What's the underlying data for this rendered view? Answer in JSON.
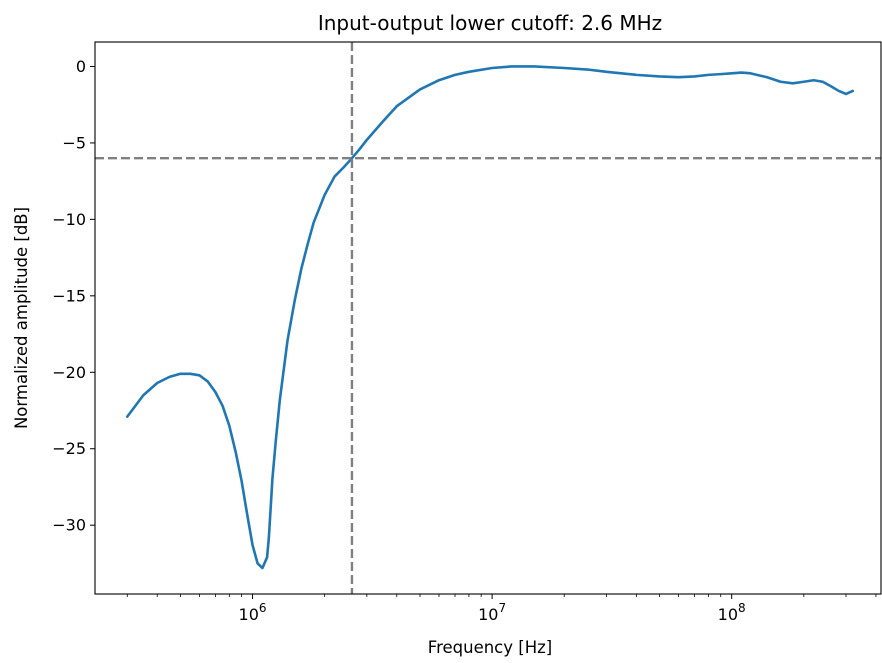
{
  "chart_data": {
    "type": "line",
    "title": "Input-output lower cutoff: 2.6 MHz",
    "xlabel": "Frequency [Hz]",
    "ylabel": "Normalized amplitude [dB]",
    "xscale": "log",
    "xlim": [
      220000,
      420000000
    ],
    "ylim": [
      -34.5,
      1.6
    ],
    "grid": false,
    "x_ticks": [
      {
        "value": 1000000,
        "base": "10",
        "exp": "6"
      },
      {
        "value": 10000000,
        "base": "10",
        "exp": "7"
      },
      {
        "value": 100000000,
        "base": "10",
        "exp": "8"
      }
    ],
    "y_ticks": [
      {
        "value": 0,
        "label": "0"
      },
      {
        "value": -5,
        "label": "−5"
      },
      {
        "value": -10,
        "label": "−10"
      },
      {
        "value": -15,
        "label": "−15"
      },
      {
        "value": -20,
        "label": "−20"
      },
      {
        "value": -25,
        "label": "−25"
      },
      {
        "value": -30,
        "label": "−30"
      }
    ],
    "reference_lines": {
      "cutoff_frequency_hz": 2600000,
      "threshold_db": -6,
      "color": "#808080",
      "style": "dashed"
    },
    "series": [
      {
        "color": "#1f77b4",
        "x": [
          300000,
          350000,
          400000,
          450000,
          500000,
          550000,
          600000,
          650000,
          700000,
          750000,
          800000,
          850000,
          900000,
          950000,
          1000000,
          1050000,
          1100000,
          1150000,
          1170000,
          1190000,
          1210000,
          1250000,
          1300000,
          1400000,
          1500000,
          1600000,
          1700000,
          1800000,
          2000000,
          2200000,
          2400000,
          2600000,
          2800000,
          3000000,
          3500000,
          4000000,
          5000000,
          6000000,
          7000000,
          8000000,
          10000000,
          12000000,
          15000000,
          20000000,
          25000000,
          30000000,
          40000000,
          50000000,
          60000000,
          70000000,
          80000000,
          90000000,
          100000000,
          110000000,
          120000000,
          140000000,
          160000000,
          180000000,
          200000000,
          220000000,
          240000000,
          260000000,
          280000000,
          300000000,
          320000000
        ],
        "y": [
          -22.9,
          -21.5,
          -20.7,
          -20.3,
          -20.1,
          -20.1,
          -20.2,
          -20.6,
          -21.3,
          -22.2,
          -23.5,
          -25.2,
          -27.1,
          -29.3,
          -31.3,
          -32.5,
          -32.8,
          -32.1,
          -30.8,
          -28.9,
          -27.0,
          -24.5,
          -21.8,
          -17.9,
          -15.3,
          -13.2,
          -11.6,
          -10.2,
          -8.4,
          -7.2,
          -6.6,
          -6.0,
          -5.4,
          -4.8,
          -3.6,
          -2.6,
          -1.5,
          -0.9,
          -0.55,
          -0.35,
          -0.1,
          0.0,
          0.0,
          -0.1,
          -0.2,
          -0.35,
          -0.55,
          -0.65,
          -0.7,
          -0.65,
          -0.55,
          -0.5,
          -0.45,
          -0.4,
          -0.45,
          -0.7,
          -1.0,
          -1.1,
          -1.0,
          -0.9,
          -1.0,
          -1.3,
          -1.6,
          -1.8,
          -1.6
        ]
      }
    ]
  }
}
